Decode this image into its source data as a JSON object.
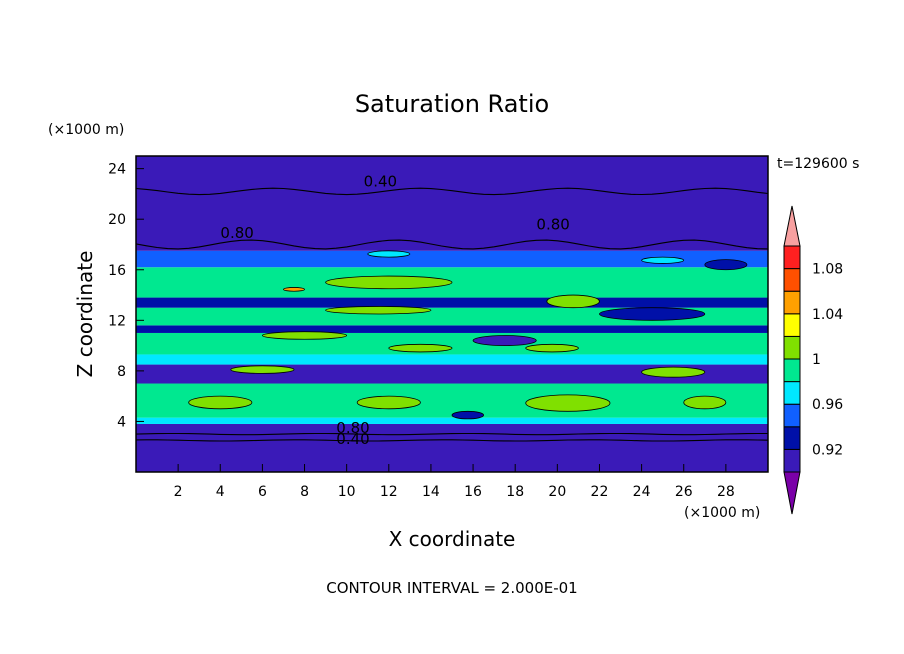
{
  "chart_data": {
    "type": "heatmap",
    "title": "Saturation Ratio",
    "xlabel": "X coordinate",
    "ylabel": "Z coordinate",
    "x_unit": "(×1000 m)",
    "y_unit": "(×1000 m)",
    "time_label": "t=129600 s",
    "footer": "CONTOUR INTERVAL = 2.000E-01",
    "xlim": [
      0,
      30
    ],
    "ylim": [
      0,
      25
    ],
    "x_ticks": [
      "2",
      "4",
      "6",
      "8",
      "10",
      "12",
      "14",
      "16",
      "18",
      "20",
      "22",
      "24",
      "26",
      "28"
    ],
    "y_ticks": [
      "4",
      "8",
      "12",
      "16",
      "20",
      "24"
    ],
    "colorbar": {
      "levels": [
        0.9,
        0.92,
        0.94,
        0.96,
        0.98,
        1.0,
        1.02,
        1.04,
        1.06,
        1.08,
        1.1
      ],
      "labels": [
        "0.92",
        "0.96",
        "1",
        "1.04",
        "1.08"
      ],
      "colors": [
        "#7a00a8",
        "#3a1ab8",
        "#0010a8",
        "#1060ff",
        "#00e8ff",
        "#00e890",
        "#80e000",
        "#ffff00",
        "#ffa000",
        "#ff5000",
        "#ff2020",
        "#f8a0a0"
      ]
    },
    "contour_labels": [
      "0.40",
      "0.80",
      "0.80",
      "0.80",
      "0.40"
    ],
    "bands": [
      {
        "z": [
          0.0,
          3.8
        ],
        "level": 0.9
      },
      {
        "z": [
          3.8,
          4.3
        ],
        "level": 0.96
      },
      {
        "z": [
          4.3,
          7.0
        ],
        "level": 0.98
      },
      {
        "z": [
          7.0,
          8.5
        ],
        "level": 0.9
      },
      {
        "z": [
          8.5,
          9.3
        ],
        "level": 0.96
      },
      {
        "z": [
          9.3,
          11.0
        ],
        "level": 0.98
      },
      {
        "z": [
          11.0,
          11.6
        ],
        "level": 0.92
      },
      {
        "z": [
          11.6,
          13.0
        ],
        "level": 0.98
      },
      {
        "z": [
          13.0,
          13.8
        ],
        "level": 0.92
      },
      {
        "z": [
          13.8,
          16.2
        ],
        "level": 0.98
      },
      {
        "z": [
          16.2,
          17.5
        ],
        "level": 0.94
      },
      {
        "z": [
          17.5,
          25.0
        ],
        "level": 0.9
      }
    ],
    "patches": [
      {
        "x": 2.5,
        "z": 5.0,
        "w": 3.0,
        "h": 1.0,
        "level": 1.0
      },
      {
        "x": 10.5,
        "z": 5.0,
        "w": 3.0,
        "h": 1.0,
        "level": 1.0
      },
      {
        "x": 18.5,
        "z": 4.8,
        "w": 4.0,
        "h": 1.3,
        "level": 1.0
      },
      {
        "x": 26.0,
        "z": 5.0,
        "w": 2.0,
        "h": 1.0,
        "level": 1.0
      },
      {
        "x": 4.5,
        "z": 7.8,
        "w": 3.0,
        "h": 0.6,
        "level": 1.0
      },
      {
        "x": 12.0,
        "z": 9.5,
        "w": 3.0,
        "h": 0.6,
        "level": 1.0
      },
      {
        "x": 18.5,
        "z": 9.5,
        "w": 2.5,
        "h": 0.6,
        "level": 1.0
      },
      {
        "x": 24.0,
        "z": 7.5,
        "w": 3.0,
        "h": 0.8,
        "level": 1.0
      },
      {
        "x": 9.0,
        "z": 12.5,
        "w": 5.0,
        "h": 0.6,
        "level": 1.0
      },
      {
        "x": 19.5,
        "z": 13.0,
        "w": 2.5,
        "h": 1.0,
        "level": 1.0
      },
      {
        "x": 9.0,
        "z": 14.5,
        "w": 6.0,
        "h": 1.0,
        "level": 1.0
      },
      {
        "x": 7.0,
        "z": 14.3,
        "w": 1.0,
        "h": 0.3,
        "level": 1.04
      },
      {
        "x": 6.0,
        "z": 10.5,
        "w": 4.0,
        "h": 0.6,
        "level": 1.0
      },
      {
        "x": 15.0,
        "z": 4.2,
        "w": 1.5,
        "h": 0.6,
        "level": 0.92
      },
      {
        "x": 24.0,
        "z": 16.5,
        "w": 2.0,
        "h": 0.5,
        "level": 0.96
      },
      {
        "x": 11.0,
        "z": 17.0,
        "w": 2.0,
        "h": 0.5,
        "level": 0.96
      },
      {
        "x": 27.0,
        "z": 16.0,
        "w": 2.0,
        "h": 0.8,
        "level": 0.92
      },
      {
        "x": 16.0,
        "z": 10.0,
        "w": 3.0,
        "h": 0.8,
        "level": 0.9
      },
      {
        "x": 22.0,
        "z": 12.0,
        "w": 5.0,
        "h": 1.0,
        "level": 0.92
      }
    ]
  }
}
